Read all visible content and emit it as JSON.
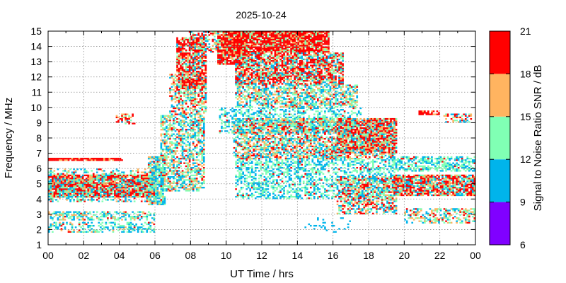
{
  "chart_data": {
    "type": "heatmap",
    "title": "2025-10-24",
    "xlabel": "UT Time / hrs",
    "ylabel": "Frequency / MHz",
    "xlim": [
      0,
      24
    ],
    "ylim": [
      1,
      15
    ],
    "x_ticks": [
      "00",
      "02",
      "04",
      "06",
      "08",
      "10",
      "12",
      "14",
      "16",
      "18",
      "20",
      "22",
      "00"
    ],
    "y_ticks": [
      "1",
      "2",
      "3",
      "4",
      "5",
      "6",
      "7",
      "8",
      "9",
      "10",
      "11",
      "12",
      "13",
      "14",
      "15"
    ],
    "grid": true,
    "colorbar": {
      "label": "Signal to Noise Ratio SNR / dB",
      "range": [
        6,
        21
      ],
      "ticks": [
        "6",
        "9",
        "12",
        "15",
        "18",
        "21"
      ],
      "bins": [
        {
          "from": 6,
          "to": 9,
          "color": "#8000ff"
        },
        {
          "from": 9,
          "to": 12,
          "color": "#00b4eb"
        },
        {
          "from": 12,
          "to": 15,
          "color": "#80ffb4"
        },
        {
          "from": 15,
          "to": 18,
          "color": "#ffb460"
        },
        {
          "from": 18,
          "to": 21,
          "color": "#ff0000"
        }
      ]
    },
    "regions": [
      {
        "t": [
          0.0,
          6.0
        ],
        "f": [
          4.1,
          5.6
        ],
        "density": 0.92,
        "snr": [
          10,
          21
        ],
        "hot": 0.55
      },
      {
        "t": [
          0.0,
          6.0
        ],
        "f": [
          3.8,
          6.0
        ],
        "density": 0.35,
        "snr": [
          9,
          17
        ],
        "hot": 0.15
      },
      {
        "t": [
          0.0,
          4.2
        ],
        "f": [
          6.5,
          6.7
        ],
        "density": 0.95,
        "snr": [
          15,
          21
        ],
        "hot": 0.75
      },
      {
        "t": [
          0.0,
          6.0
        ],
        "f": [
          2.6,
          3.2
        ],
        "density": 0.55,
        "snr": [
          9,
          16
        ],
        "hot": 0.08
      },
      {
        "t": [
          0.0,
          6.0
        ],
        "f": [
          1.8,
          2.5
        ],
        "density": 0.45,
        "snr": [
          9,
          16
        ],
        "hot": 0.05
      },
      {
        "t": [
          3.8,
          4.9
        ],
        "f": [
          8.9,
          9.6
        ],
        "density": 0.45,
        "snr": [
          10,
          21
        ],
        "hot": 0.5
      },
      {
        "t": [
          5.6,
          6.6
        ],
        "f": [
          3.6,
          6.8
        ],
        "density": 0.75,
        "snr": [
          9,
          16
        ],
        "hot": 0.08
      },
      {
        "t": [
          6.3,
          8.8
        ],
        "f": [
          4.5,
          9.5
        ],
        "density": 0.6,
        "snr": [
          9,
          17
        ],
        "hot": 0.12
      },
      {
        "t": [
          6.8,
          8.9
        ],
        "f": [
          9.5,
          12.2
        ],
        "density": 0.55,
        "snr": [
          9,
          18
        ],
        "hot": 0.2
      },
      {
        "t": [
          7.2,
          8.9
        ],
        "f": [
          11.2,
          14.6
        ],
        "density": 0.75,
        "snr": [
          10,
          21
        ],
        "hot": 0.55
      },
      {
        "t": [
          7.9,
          9.5
        ],
        "f": [
          13.6,
          15.0
        ],
        "density": 0.5,
        "snr": [
          10,
          21
        ],
        "hot": 0.4
      },
      {
        "t": [
          9.5,
          11.2
        ],
        "f": [
          12.8,
          15.0
        ],
        "density": 0.85,
        "snr": [
          11,
          21
        ],
        "hot": 0.6
      },
      {
        "t": [
          9.8,
          15.8
        ],
        "f": [
          13.6,
          15.0
        ],
        "density": 0.93,
        "snr": [
          12,
          21
        ],
        "hot": 0.72
      },
      {
        "t": [
          10.5,
          16.6
        ],
        "f": [
          11.5,
          13.6
        ],
        "density": 0.78,
        "snr": [
          9,
          21
        ],
        "hot": 0.45
      },
      {
        "t": [
          10.5,
          17.4
        ],
        "f": [
          10.0,
          11.5
        ],
        "density": 0.6,
        "snr": [
          9,
          17
        ],
        "hot": 0.1
      },
      {
        "t": [
          9.6,
          17.6
        ],
        "f": [
          8.3,
          10.0
        ],
        "density": 0.4,
        "snr": [
          9,
          15
        ],
        "hot": 0.05
      },
      {
        "t": [
          10.4,
          19.5
        ],
        "f": [
          6.6,
          9.3
        ],
        "density": 0.65,
        "snr": [
          9,
          20
        ],
        "hot": 0.2
      },
      {
        "t": [
          16.2,
          19.6
        ],
        "f": [
          7.0,
          9.3
        ],
        "density": 0.7,
        "snr": [
          10,
          21
        ],
        "hot": 0.45
      },
      {
        "t": [
          10.5,
          19.5
        ],
        "f": [
          4.0,
          6.6
        ],
        "density": 0.45,
        "snr": [
          9,
          15
        ],
        "hot": 0.06
      },
      {
        "t": [
          16.2,
          19.6
        ],
        "f": [
          3.0,
          5.5
        ],
        "density": 0.55,
        "snr": [
          9,
          21
        ],
        "hot": 0.3
      },
      {
        "t": [
          19.3,
          24.0
        ],
        "f": [
          5.8,
          6.8
        ],
        "density": 0.55,
        "snr": [
          9,
          15
        ],
        "hot": 0.05
      },
      {
        "t": [
          19.4,
          24.0
        ],
        "f": [
          4.2,
          5.6
        ],
        "density": 0.85,
        "snr": [
          9,
          21
        ],
        "hot": 0.4
      },
      {
        "t": [
          20.0,
          24.0
        ],
        "f": [
          2.4,
          3.4
        ],
        "density": 0.45,
        "snr": [
          9,
          18
        ],
        "hot": 0.15
      },
      {
        "t": [
          20.8,
          22.0
        ],
        "f": [
          9.5,
          9.8
        ],
        "density": 0.6,
        "snr": [
          15,
          21
        ],
        "hot": 0.7
      },
      {
        "t": [
          22.2,
          23.8
        ],
        "f": [
          9.0,
          9.6
        ],
        "density": 0.45,
        "snr": [
          9,
          21
        ],
        "hot": 0.35
      },
      {
        "t": [
          14.4,
          17.0
        ],
        "f": [
          1.8,
          2.8
        ],
        "density": 0.12,
        "snr": [
          9,
          12
        ],
        "hot": 0.0
      }
    ]
  }
}
